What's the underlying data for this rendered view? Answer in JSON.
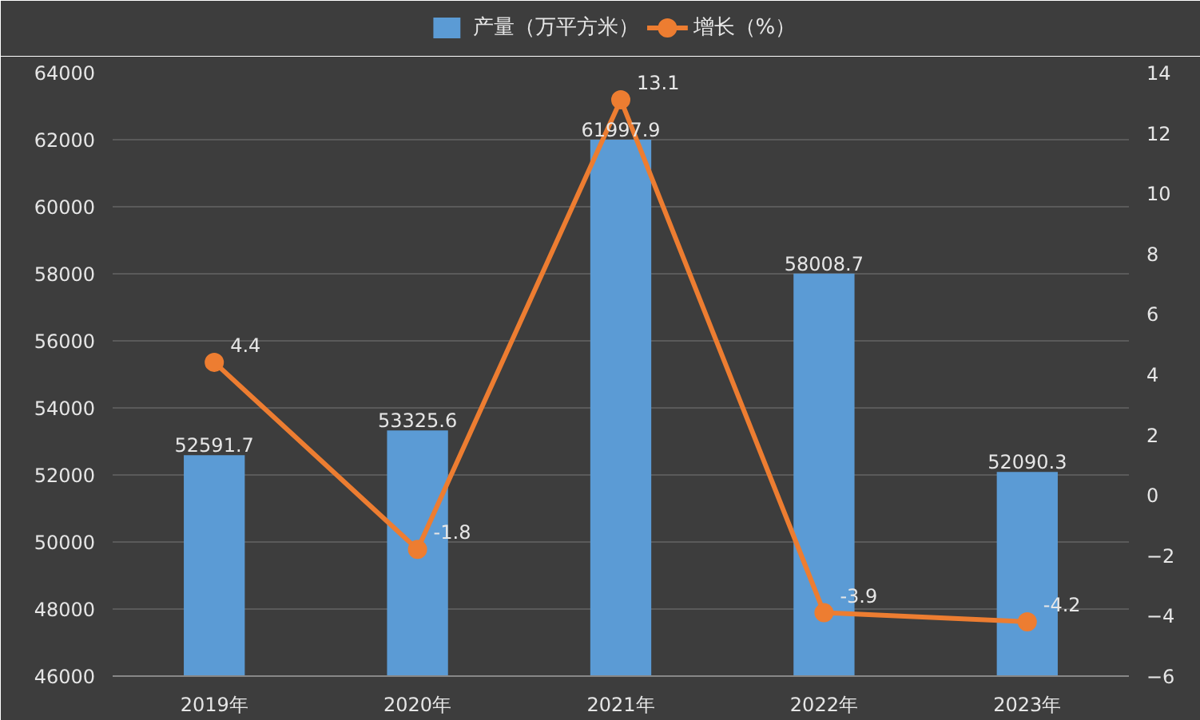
{
  "chart_data": {
    "type": "bar",
    "categories": [
      "2019年",
      "2020年",
      "2021年",
      "2022年",
      "2023年"
    ],
    "series": [
      {
        "name": "产量（万平方米）",
        "color": "#5b9bd5",
        "values": [
          52591.7,
          53325.6,
          61997.9,
          58008.7,
          52090.3
        ]
      },
      {
        "name": "增长（%）",
        "type": "line",
        "axis": "y2",
        "color": "#ed7d31",
        "values": [
          4.4,
          -1.8,
          13.1,
          -3.9,
          -4.2
        ]
      }
    ],
    "ylim": [
      46000,
      64000
    ],
    "yticks": [
      46000,
      48000,
      50000,
      52000,
      54000,
      56000,
      58000,
      60000,
      62000,
      64000
    ],
    "y2lim": [
      -6,
      14
    ],
    "y2ticks": [
      -6,
      -4,
      -2,
      0,
      2,
      4,
      6,
      8,
      10,
      12,
      14
    ],
    "data_labels": true,
    "grid": "y",
    "legend": "top",
    "marker": "circle"
  }
}
